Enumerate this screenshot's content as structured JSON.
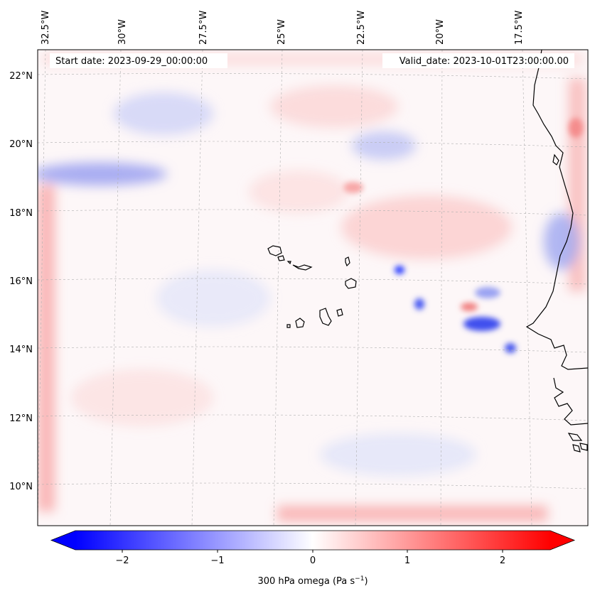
{
  "map": {
    "title": "",
    "start_label": "Start date: 2023-09-29_00:00:00",
    "valid_label": "Valid_date: 2023-10-01T23:00:00.00",
    "lon_labels": [
      "32.5°W",
      "30°W",
      "27.5°W",
      "25°W",
      "22.5°W",
      "20°W",
      "17.5°W"
    ],
    "lat_labels": [
      "22°N",
      "20°N",
      "18°N",
      "16°N",
      "14°N",
      "12°N",
      "10°N"
    ],
    "colorbar": {
      "label": "300 hPa omega (Pa s",
      "label_sup": "−1",
      "label_close": ")",
      "ticks": [
        "−2",
        "−1",
        "0",
        "1",
        "2"
      ],
      "range": [
        -2.5,
        2.5
      ],
      "colormap": "bwr"
    },
    "colors": {
      "negative": "#0000ff",
      "positive": "#ff0000",
      "neutral": "#ffffff",
      "coastline": "#000000",
      "gridline": "#b0b0b0"
    }
  }
}
